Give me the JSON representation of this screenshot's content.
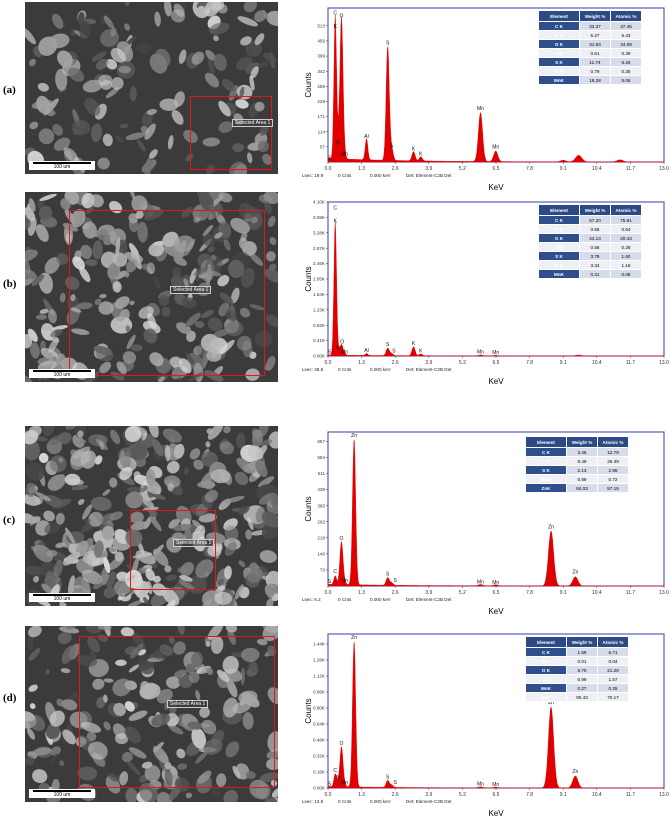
{
  "figure": {
    "scale_bar_label": "100 um",
    "selected_area_label": "Selected Area 1",
    "xlabel": "KeV",
    "ylabel": "Counts",
    "colors": {
      "spectrum": "#e00000",
      "plot_border": "#3a3ab0",
      "table_header": "#2c4b86",
      "selection": "#e01818"
    }
  },
  "table_headers": [
    "Element",
    "Weight %",
    "Atomic %"
  ],
  "chart_data": [
    {
      "panel_label": "(a)",
      "type": "area",
      "xlabel": "KeV",
      "ylabel": "Counts",
      "xlim": [
        0,
        13.0
      ],
      "ylim": [
        0,
        580
      ],
      "x_ticks": [
        "0.0",
        "1.3",
        "2.6",
        "3.9",
        "5.2",
        "6.5",
        "7.8",
        "9.1",
        "10.4",
        "11.7",
        "13.0"
      ],
      "y_ticks": [
        "57",
        "114",
        "171",
        "228",
        "285",
        "342",
        "399",
        "456",
        "513"
      ],
      "peaks": [
        {
          "x": 0.28,
          "y": 540,
          "w": 0.05
        },
        {
          "x": 0.52,
          "y": 535,
          "w": 0.06
        },
        {
          "x": 0.39,
          "y": 55,
          "w": 0.04
        },
        {
          "x": 0.64,
          "y": 18,
          "w": 0.05
        },
        {
          "x": 1.49,
          "y": 80,
          "w": 0.05
        },
        {
          "x": 2.31,
          "y": 430,
          "w": 0.06
        },
        {
          "x": 2.46,
          "y": 45,
          "w": 0.06
        },
        {
          "x": 3.31,
          "y": 35,
          "w": 0.06
        },
        {
          "x": 3.59,
          "y": 16,
          "w": 0.06
        },
        {
          "x": 5.9,
          "y": 185,
          "w": 0.08
        },
        {
          "x": 6.49,
          "y": 40,
          "w": 0.08
        },
        {
          "x": 9.1,
          "y": 6,
          "w": 0.1
        },
        {
          "x": 9.7,
          "y": 25,
          "w": 0.12
        },
        {
          "x": 11.3,
          "y": 8,
          "w": 0.12
        }
      ],
      "background": 14,
      "peak_labels": [
        {
          "text": "C",
          "x": 0.28,
          "y": 555
        },
        {
          "text": "O",
          "x": 0.52,
          "y": 545
        },
        {
          "text": "K",
          "x": 0.28,
          "y": 505
        },
        {
          "text": "N",
          "x": 0.39,
          "y": 65
        },
        {
          "text": "Mn",
          "x": 0.64,
          "y": 24
        },
        {
          "text": "Al",
          "x": 1.49,
          "y": 90
        },
        {
          "text": "S",
          "x": 2.31,
          "y": 442
        },
        {
          "text": "S",
          "x": 2.46,
          "y": 54
        },
        {
          "text": "K",
          "x": 3.31,
          "y": 44
        },
        {
          "text": "K",
          "x": 3.59,
          "y": 24
        },
        {
          "text": "Mn",
          "x": 5.9,
          "y": 196
        },
        {
          "text": "Mn",
          "x": 6.49,
          "y": 50
        },
        {
          "text": "S",
          "x": 0.05,
          "y": 10
        }
      ],
      "table": [
        [
          "C K",
          "33.37",
          "47.45"
        ],
        [
          "N K",
          "5.27",
          "6.43"
        ],
        [
          "O K",
          "31.93",
          "34.08"
        ],
        [
          "AlK",
          "0.61",
          "0.39"
        ],
        [
          "S K",
          "11.74",
          "6.25"
        ],
        [
          "K K",
          "0.79",
          "0.35"
        ],
        [
          "MnK",
          "16.28",
          "5.06"
        ]
      ],
      "footer": {
        "lsec": "Lsec: 19.9",
        "cnts": "0 Cnts",
        "kev": "0.000 keV",
        "det": "Det: Element-C2B Det"
      }
    },
    {
      "panel_label": "(b)",
      "type": "area",
      "xlabel": "KeV",
      "ylabel": "Counts",
      "xlim": [
        0,
        13.0
      ],
      "ylim": [
        0,
        4100
      ],
      "x_ticks": [
        "0.0",
        "1.3",
        "2.6",
        "3.9",
        "5.2",
        "6.5",
        "7.8",
        "9.1",
        "10.4",
        "11.7",
        "13.0"
      ],
      "y_ticks": [
        "0.00K",
        "0.41K",
        "0.82K",
        "1.23K",
        "1.64K",
        "2.05K",
        "2.46K",
        "2.87K",
        "3.28K",
        "3.69K",
        "4.10K"
      ],
      "peaks": [
        {
          "x": 0.28,
          "y": 3550,
          "w": 0.05
        },
        {
          "x": 0.52,
          "y": 290,
          "w": 0.06
        },
        {
          "x": 0.39,
          "y": 100,
          "w": 0.04
        },
        {
          "x": 0.64,
          "y": 40,
          "w": 0.05
        },
        {
          "x": 1.49,
          "y": 55,
          "w": 0.05
        },
        {
          "x": 2.31,
          "y": 200,
          "w": 0.06
        },
        {
          "x": 2.46,
          "y": 60,
          "w": 0.06
        },
        {
          "x": 3.31,
          "y": 240,
          "w": 0.06
        },
        {
          "x": 3.59,
          "y": 50,
          "w": 0.06
        },
        {
          "x": 5.9,
          "y": 25,
          "w": 0.08
        },
        {
          "x": 6.49,
          "y": 18,
          "w": 0.08
        },
        {
          "x": 9.7,
          "y": 25,
          "w": 0.12
        }
      ],
      "background": 25,
      "peak_labels": [
        {
          "text": "C",
          "x": 0.28,
          "y": 3900
        },
        {
          "text": "K",
          "x": 0.28,
          "y": 3550
        },
        {
          "text": "O",
          "x": 0.55,
          "y": 330
        },
        {
          "text": "N",
          "x": 0.39,
          "y": 170
        },
        {
          "text": "Mn",
          "x": 0.64,
          "y": 60
        },
        {
          "text": "Al",
          "x": 1.49,
          "y": 110
        },
        {
          "text": "S",
          "x": 2.31,
          "y": 260
        },
        {
          "text": "S",
          "x": 2.55,
          "y": 95
        },
        {
          "text": "K",
          "x": 3.31,
          "y": 290
        },
        {
          "text": "K",
          "x": 3.59,
          "y": 90
        },
        {
          "text": "Mn",
          "x": 5.9,
          "y": 60
        },
        {
          "text": "Mn",
          "x": 6.49,
          "y": 50
        },
        {
          "text": "S",
          "x": 0.05,
          "y": 70
        }
      ],
      "table": [
        [
          "C K",
          "67.20",
          "75.81"
        ],
        [
          "N K",
          "0.66",
          "0.64"
        ],
        [
          "O K",
          "24.13",
          "20.43"
        ],
        [
          "AlK",
          "0.56",
          "0.28"
        ],
        [
          "S K",
          "3.79",
          "1.60"
        ],
        [
          "K K",
          "3.34",
          "1.16"
        ],
        [
          "MnK",
          "0.31",
          "0.08"
        ]
      ],
      "footer": {
        "lsec": "Lsec: 48.6",
        "cnts": "0 Cnts",
        "kev": "0.000 keV",
        "det": "Det: Element-C2B Det"
      }
    },
    {
      "panel_label": "(c)",
      "type": "area",
      "xlabel": "KeV",
      "ylabel": "Counts",
      "xlim": [
        0,
        13.0
      ],
      "ylim": [
        0,
        700
      ],
      "x_ticks": [
        "0.0",
        "1.3",
        "2.6",
        "3.9",
        "5.2",
        "6.5",
        "7.8",
        "9.1",
        "10.4",
        "11.7",
        "13.0"
      ],
      "y_ticks": [
        "73",
        "146",
        "219",
        "292",
        "365",
        "438",
        "511",
        "584",
        "657"
      ],
      "peaks": [
        {
          "x": 0.28,
          "y": 40,
          "w": 0.05
        },
        {
          "x": 0.52,
          "y": 195,
          "w": 0.06
        },
        {
          "x": 0.64,
          "y": 12,
          "w": 0.05
        },
        {
          "x": 1.01,
          "y": 665,
          "w": 0.06
        },
        {
          "x": 2.31,
          "y": 35,
          "w": 0.06
        },
        {
          "x": 2.46,
          "y": 12,
          "w": 0.06
        },
        {
          "x": 5.9,
          "y": 6,
          "w": 0.08
        },
        {
          "x": 6.49,
          "y": 5,
          "w": 0.08
        },
        {
          "x": 8.63,
          "y": 250,
          "w": 0.1
        },
        {
          "x": 9.57,
          "y": 42,
          "w": 0.1
        }
      ],
      "background": 8,
      "peak_labels": [
        {
          "text": "Zn",
          "x": 1.01,
          "y": 680
        },
        {
          "text": "O",
          "x": 0.52,
          "y": 210
        },
        {
          "text": "C",
          "x": 0.28,
          "y": 60
        },
        {
          "text": "Mn",
          "x": 0.64,
          "y": 18
        },
        {
          "text": "S",
          "x": 2.31,
          "y": 48
        },
        {
          "text": "S",
          "x": 2.6,
          "y": 18
        },
        {
          "text": "Mn",
          "x": 5.9,
          "y": 12
        },
        {
          "text": "Mn",
          "x": 6.49,
          "y": 10
        },
        {
          "text": "Zn",
          "x": 8.63,
          "y": 262
        },
        {
          "text": "Zn",
          "x": 9.57,
          "y": 56
        },
        {
          "text": "S",
          "x": 0.05,
          "y": 14
        }
      ],
      "table": [
        [
          "C K",
          "3.46",
          "12.79"
        ],
        [
          "O K",
          "9.49",
          "26.39"
        ],
        [
          "S K",
          "2.13",
          "2.95"
        ],
        [
          "MnK",
          "0.89",
          "0.72"
        ],
        [
          "ZnK",
          "84.03",
          "57.15"
        ]
      ],
      "footer": {
        "lsec": "Lsec: 6.2",
        "cnts": "0 Cnts",
        "kev": "0.000 keV",
        "det": "Det: Element-C2B Det"
      }
    },
    {
      "panel_label": "(d)",
      "type": "area",
      "xlabel": "KeV",
      "ylabel": "Counts",
      "xlim": [
        0,
        13.0
      ],
      "ylim": [
        0,
        1540
      ],
      "x_ticks": [
        "0.0",
        "1.3",
        "2.6",
        "3.9",
        "5.2",
        "6.5",
        "7.8",
        "9.1",
        "10.4",
        "11.7",
        "13.0"
      ],
      "y_ticks": [
        "0.00K",
        "0.16K",
        "0.32K",
        "0.48K",
        "0.64K",
        "0.80K",
        "0.96K",
        "1.12K",
        "1.28K",
        "1.44K"
      ],
      "peaks": [
        {
          "x": 0.28,
          "y": 130,
          "w": 0.05
        },
        {
          "x": 0.52,
          "y": 400,
          "w": 0.06
        },
        {
          "x": 0.39,
          "y": 40,
          "w": 0.04
        },
        {
          "x": 0.64,
          "y": 25,
          "w": 0.05
        },
        {
          "x": 1.01,
          "y": 1460,
          "w": 0.06
        },
        {
          "x": 2.31,
          "y": 70,
          "w": 0.06
        },
        {
          "x": 2.46,
          "y": 25,
          "w": 0.06
        },
        {
          "x": 5.9,
          "y": 10,
          "w": 0.08
        },
        {
          "x": 6.49,
          "y": 8,
          "w": 0.08
        },
        {
          "x": 8.63,
          "y": 810,
          "w": 0.1
        },
        {
          "x": 9.57,
          "y": 120,
          "w": 0.1
        }
      ],
      "background": 15,
      "peak_labels": [
        {
          "text": "Zn",
          "x": 1.01,
          "y": 1490
        },
        {
          "text": "O",
          "x": 0.52,
          "y": 430
        },
        {
          "text": "C",
          "x": 0.28,
          "y": 160
        },
        {
          "text": "N",
          "x": 0.39,
          "y": 90
        },
        {
          "text": "Mn",
          "x": 0.64,
          "y": 40
        },
        {
          "text": "S",
          "x": 2.31,
          "y": 95
        },
        {
          "text": "S",
          "x": 2.6,
          "y": 40
        },
        {
          "text": "Mn",
          "x": 5.9,
          "y": 25
        },
        {
          "text": "Mn",
          "x": 6.49,
          "y": 22
        },
        {
          "text": "Zn",
          "x": 8.63,
          "y": 840
        },
        {
          "text": "Zn",
          "x": 9.57,
          "y": 150
        },
        {
          "text": "S",
          "x": 0.05,
          "y": 25
        }
      ],
      "table": [
        [
          "C K",
          "1.59",
          "6.71"
        ],
        [
          "N K",
          "0.01",
          "0.04"
        ],
        [
          "O K",
          "6.70",
          "21.26"
        ],
        [
          "S K",
          "0.99",
          "1.57"
        ],
        [
          "MnK",
          "0.27",
          "0.25"
        ],
        [
          "ZnK",
          "90.43",
          "70.17"
        ]
      ],
      "footer": {
        "lsec": "Lsec: 13.5",
        "cnts": "0 Cnts",
        "kev": "0.000 keV",
        "det": "Det: Element-C2B Det"
      }
    }
  ]
}
